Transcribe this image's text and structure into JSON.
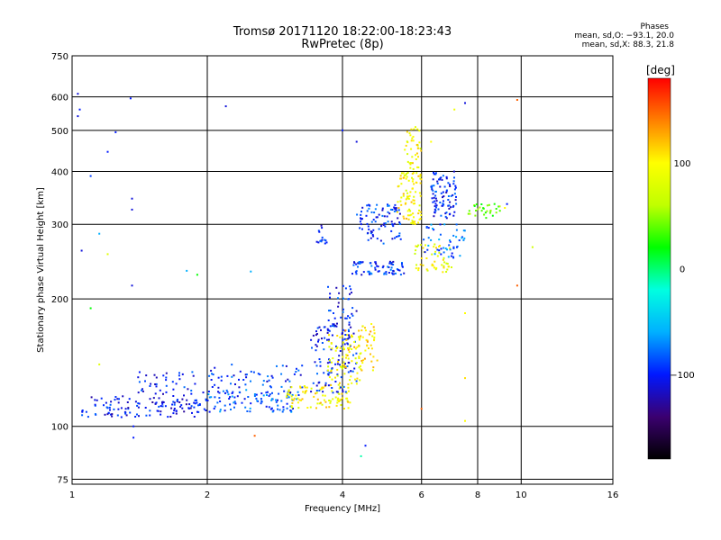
{
  "chart_data": {
    "type": "scatter",
    "title": "Tromsø 20171120 18:22:00-18:23:43",
    "subtitle": "RwPretec (8p)",
    "xlabel": "Frequency [MHz]",
    "ylabel": "Stationary phase Virtual Height [km]",
    "x_scale": "log",
    "y_scale": "log",
    "xlim": [
      1,
      16
    ],
    "ylim": [
      73,
      750
    ],
    "x_ticks": [
      1,
      2,
      4,
      6,
      8,
      10,
      16
    ],
    "x_tick_labels": [
      "1",
      "2",
      "4",
      "6",
      "8",
      "10",
      "16"
    ],
    "y_ticks": [
      75,
      100,
      200,
      300,
      400,
      500,
      600,
      750
    ],
    "y_tick_labels": [
      "75",
      "100",
      "200",
      "300",
      "400",
      "500",
      "600",
      "750"
    ],
    "grid": true,
    "stats": {
      "heading": "Phases",
      "line_o": "mean, sd,O: −93.1, 20.0",
      "line_x": "mean, sd,X:  88.3, 21.8"
    },
    "colorbar": {
      "label": "[deg]",
      "range": [
        -180,
        180
      ],
      "ticks": [
        100,
        0,
        -100
      ],
      "tick_labels": [
        "100",
        "0",
        "−100"
      ],
      "colors": [
        "#000000",
        "#3b0070",
        "#0018ff",
        "#00b0ff",
        "#00ffe0",
        "#00ff00",
        "#c0ff00",
        "#ffff00",
        "#ff8000",
        "#ff0000"
      ]
    },
    "clusters": [
      {
        "f": [
          1.05,
          1.9
        ],
        "h": [
          105,
          118
        ],
        "phase": -105,
        "n": 120
      },
      {
        "f": [
          1.4,
          1.9
        ],
        "h": [
          118,
          135
        ],
        "phase": -100,
        "n": 40
      },
      {
        "f": [
          1.9,
          3.2
        ],
        "h": [
          108,
          122
        ],
        "phase": -85,
        "n": 110
      },
      {
        "f": [
          2.0,
          3.3
        ],
        "h": [
          120,
          140
        ],
        "phase": -95,
        "n": 60
      },
      {
        "f": [
          3.0,
          4.2
        ],
        "h": [
          110,
          125
        ],
        "phase": 100,
        "n": 90
      },
      {
        "f": [
          3.4,
          4.3
        ],
        "h": [
          120,
          175
        ],
        "phase": -100,
        "n": 110
      },
      {
        "f": [
          3.7,
          4.4
        ],
        "h": [
          125,
          165
        ],
        "phase": 95,
        "n": 70
      },
      {
        "f": [
          4.0,
          4.8
        ],
        "h": [
          135,
          175
        ],
        "phase": 110,
        "n": 60
      },
      {
        "f": [
          3.7,
          4.3
        ],
        "h": [
          160,
          215
        ],
        "phase": -100,
        "n": 50
      },
      {
        "f": [
          4.2,
          5.5
        ],
        "h": [
          228,
          245
        ],
        "phase": -95,
        "n": 70
      },
      {
        "f": [
          4.3,
          5.4
        ],
        "h": [
          270,
          335
        ],
        "phase": -95,
        "n": 90
      },
      {
        "f": [
          5.3,
          6.0
        ],
        "h": [
          300,
          400
        ],
        "phase": 100,
        "n": 90
      },
      {
        "f": [
          5.5,
          6.0
        ],
        "h": [
          400,
          510
        ],
        "phase": 95,
        "n": 40
      },
      {
        "f": [
          5.8,
          7.0
        ],
        "h": [
          230,
          270
        ],
        "phase": 90,
        "n": 50
      },
      {
        "f": [
          6.3,
          7.2
        ],
        "h": [
          310,
          400
        ],
        "phase": -100,
        "n": 90
      },
      {
        "f": [
          6.0,
          7.5
        ],
        "h": [
          250,
          300
        ],
        "phase": -80,
        "n": 50
      },
      {
        "f": [
          7.6,
          9.0
        ],
        "h": [
          310,
          335
        ],
        "phase": 40,
        "n": 30
      },
      {
        "f": [
          3.5,
          3.7
        ],
        "h": [
          270,
          300
        ],
        "phase": -100,
        "n": 15
      }
    ],
    "scattered_points": [
      {
        "f": 1.03,
        "h": 610,
        "phase": -110
      },
      {
        "f": 1.04,
        "h": 560,
        "phase": -100
      },
      {
        "f": 1.03,
        "h": 540,
        "phase": -110
      },
      {
        "f": 1.35,
        "h": 595,
        "phase": -100
      },
      {
        "f": 1.25,
        "h": 495,
        "phase": -100
      },
      {
        "f": 1.2,
        "h": 445,
        "phase": -100
      },
      {
        "f": 1.1,
        "h": 390,
        "phase": -90
      },
      {
        "f": 1.36,
        "h": 345,
        "phase": -110
      },
      {
        "f": 1.36,
        "h": 325,
        "phase": -110
      },
      {
        "f": 1.15,
        "h": 285,
        "phase": -60
      },
      {
        "f": 1.2,
        "h": 255,
        "phase": 80
      },
      {
        "f": 1.05,
        "h": 260,
        "phase": -110
      },
      {
        "f": 1.36,
        "h": 215,
        "phase": -110
      },
      {
        "f": 1.1,
        "h": 190,
        "phase": 20
      },
      {
        "f": 1.15,
        "h": 140,
        "phase": 80
      },
      {
        "f": 1.37,
        "h": 100,
        "phase": -100
      },
      {
        "f": 1.37,
        "h": 94,
        "phase": -100
      },
      {
        "f": 2.2,
        "h": 570,
        "phase": -110
      },
      {
        "f": 1.8,
        "h": 233,
        "phase": -60
      },
      {
        "f": 1.9,
        "h": 228,
        "phase": 20
      },
      {
        "f": 2.5,
        "h": 232,
        "phase": -60
      },
      {
        "f": 2.55,
        "h": 95,
        "phase": 150
      },
      {
        "f": 4.0,
        "h": 500,
        "phase": -100
      },
      {
        "f": 4.3,
        "h": 470,
        "phase": -110
      },
      {
        "f": 4.5,
        "h": 90,
        "phase": -100
      },
      {
        "f": 4.4,
        "h": 85,
        "phase": -10
      },
      {
        "f": 7.5,
        "h": 580,
        "phase": -110
      },
      {
        "f": 7.1,
        "h": 560,
        "phase": 90
      },
      {
        "f": 6.3,
        "h": 470,
        "phase": 100
      },
      {
        "f": 7.5,
        "h": 185,
        "phase": 100
      },
      {
        "f": 7.5,
        "h": 130,
        "phase": 110
      },
      {
        "f": 7.5,
        "h": 103,
        "phase": 100
      },
      {
        "f": 9.8,
        "h": 590,
        "phase": 150
      },
      {
        "f": 10.6,
        "h": 265,
        "phase": 70
      },
      {
        "f": 9.8,
        "h": 215,
        "phase": 150
      },
      {
        "f": 6.0,
        "h": 110,
        "phase": 150
      },
      {
        "f": 9.3,
        "h": 335,
        "phase": -100
      },
      {
        "f": 9.2,
        "h": 328,
        "phase": 100
      }
    ]
  }
}
